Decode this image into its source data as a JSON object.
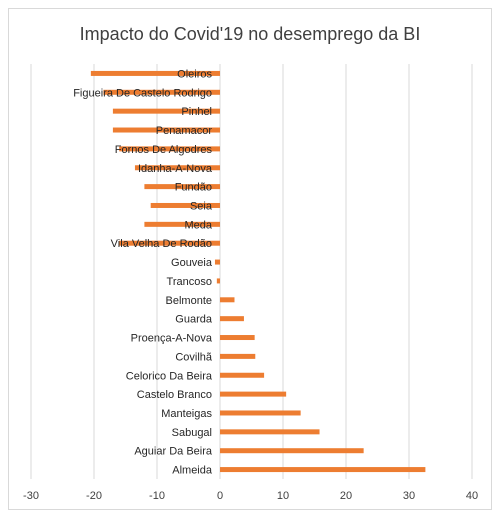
{
  "chart_data": {
    "type": "bar",
    "orientation": "horizontal",
    "title": "Impacto do Covid'19 no desemprego da BI",
    "categories": [
      "Oleiros",
      "Figueira De Castelo Rodrigo",
      "Pinhel",
      "Penamacor",
      "Fornos De Algodres",
      "Idanha-A-Nova",
      "Fundão",
      "Seia",
      "Meda",
      "Vila Velha De Rodão",
      "Gouveia",
      "Trancoso",
      "Belmonte",
      "Guarda",
      "Proença-A-Nova",
      "Covilhã",
      "Celorico Da Beira",
      "Castelo Branco",
      "Manteigas",
      "Sabugal",
      "Aguiar Da Beira",
      "Almeida"
    ],
    "values": [
      -20.5,
      -18.5,
      -17.0,
      -17.0,
      -16.0,
      -13.5,
      -12.0,
      -11.0,
      -12.0,
      -16.0,
      -0.8,
      -0.5,
      2.3,
      3.8,
      5.5,
      5.6,
      7.0,
      10.5,
      12.8,
      15.8,
      22.8,
      32.6
    ],
    "xlim": [
      -30,
      40
    ],
    "xticks": [
      -30,
      -20,
      -10,
      0,
      10,
      20,
      30,
      40
    ],
    "grid": true,
    "bar_color": "#ED7D31",
    "grid_color": "#d9d9d9"
  }
}
